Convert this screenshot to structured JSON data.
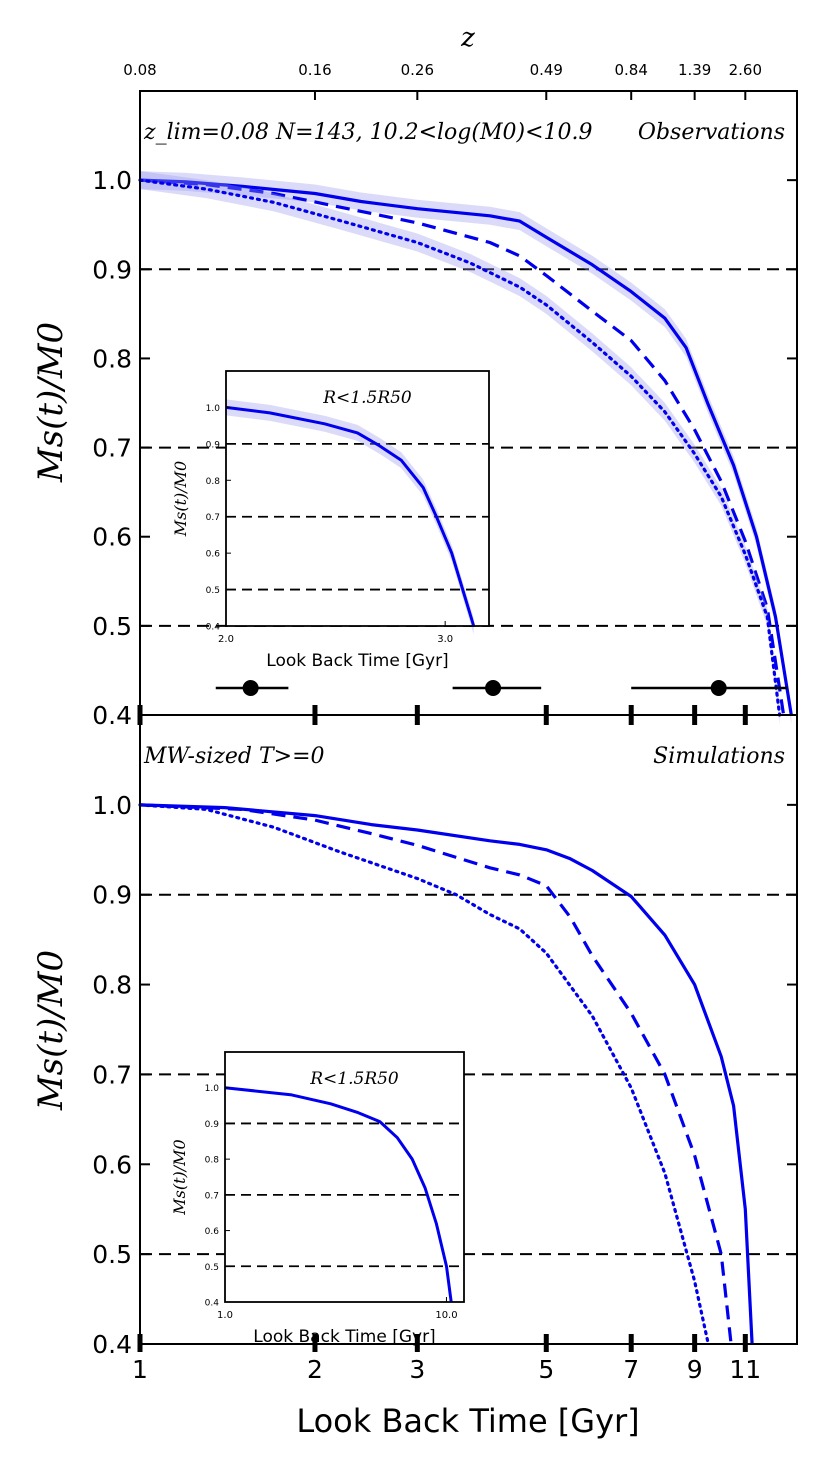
{
  "figure": {
    "top_axis_label": "z",
    "x_label": "Look Back Time [Gyr]",
    "y_label_text": "Ms(t)/M0"
  },
  "chart_data": [
    {
      "type": "line",
      "panel": "top",
      "annotation_left": "z_lim=0.08 N=143, 10.2<log(M0)<10.9",
      "annotation_right": "Observations",
      "xscale": "log",
      "xlim": [
        1,
        13.5
      ],
      "ylim": [
        0.4,
        1.1
      ],
      "yticks": [
        0.4,
        0.5,
        0.6,
        0.7,
        0.8,
        0.9,
        1.0
      ],
      "top_ticks": [
        {
          "z": "0.08",
          "t": 1.0
        },
        {
          "z": "0.16",
          "t": 2.0
        },
        {
          "z": "0.26",
          "t": 3.0
        },
        {
          "z": "0.49",
          "t": 5.0
        },
        {
          "z": "0.84",
          "t": 7.0
        },
        {
          "z": "1.39",
          "t": 9.0
        },
        {
          "z": "2.60",
          "t": 11.0
        }
      ],
      "hlines": [
        0.5,
        0.7,
        0.9
      ],
      "error_bars": [
        {
          "x": 1.55,
          "xerr": [
            1.35,
            1.8
          ]
        },
        {
          "x": 4.05,
          "xerr": [
            3.45,
            4.9
          ]
        },
        {
          "x": 9.9,
          "xerr": [
            7.0,
            13.0
          ]
        }
      ],
      "series": [
        {
          "style": "solid",
          "band": true,
          "points": [
            [
              1.0,
              1.0
            ],
            [
              1.2,
              0.998
            ],
            [
              1.5,
              0.993
            ],
            [
              2.0,
              0.985
            ],
            [
              2.4,
              0.976
            ],
            [
              3.0,
              0.968
            ],
            [
              4.0,
              0.96
            ],
            [
              4.5,
              0.954
            ],
            [
              5.0,
              0.936
            ],
            [
              6.0,
              0.905
            ],
            [
              7.0,
              0.875
            ],
            [
              8.0,
              0.845
            ],
            [
              8.7,
              0.812
            ],
            [
              9.5,
              0.748
            ],
            [
              10.5,
              0.68
            ],
            [
              11.5,
              0.6
            ],
            [
              12.4,
              0.51
            ],
            [
              13.2,
              0.4
            ]
          ]
        },
        {
          "style": "dashed",
          "band": false,
          "points": [
            [
              1.0,
              1.0
            ],
            [
              1.3,
              0.995
            ],
            [
              1.7,
              0.985
            ],
            [
              2.2,
              0.97
            ],
            [
              3.0,
              0.952
            ],
            [
              4.0,
              0.93
            ],
            [
              4.5,
              0.915
            ],
            [
              5.0,
              0.893
            ],
            [
              6.0,
              0.853
            ],
            [
              7.0,
              0.82
            ],
            [
              8.0,
              0.775
            ],
            [
              9.0,
              0.72
            ],
            [
              10.0,
              0.662
            ],
            [
              11.0,
              0.595
            ],
            [
              12.0,
              0.52
            ],
            [
              12.8,
              0.4
            ]
          ]
        },
        {
          "style": "dotted",
          "band": true,
          "points": [
            [
              1.0,
              1.0
            ],
            [
              1.3,
              0.99
            ],
            [
              1.7,
              0.975
            ],
            [
              2.2,
              0.955
            ],
            [
              3.0,
              0.93
            ],
            [
              3.7,
              0.907
            ],
            [
              4.5,
              0.88
            ],
            [
              5.0,
              0.86
            ],
            [
              6.0,
              0.818
            ],
            [
              7.0,
              0.78
            ],
            [
              8.0,
              0.74
            ],
            [
              9.0,
              0.693
            ],
            [
              10.0,
              0.645
            ],
            [
              11.0,
              0.58
            ],
            [
              12.0,
              0.51
            ],
            [
              12.6,
              0.4
            ]
          ]
        }
      ],
      "inset": {
        "annotation": "R<1.5R50",
        "x_label": "Look Back Time [Gyr]",
        "xlim": [
          2.0,
          3.2
        ],
        "ylim": [
          0.4,
          1.1
        ],
        "xticks": [
          "2.0",
          "3.0"
        ],
        "yticks": [
          "0.4",
          "0.5",
          "0.6",
          "0.7",
          "0.8",
          "0.9",
          "1.0"
        ],
        "hlines": [
          0.5,
          0.7,
          0.9
        ],
        "series": {
          "style": "solid",
          "band": true,
          "points": [
            [
              2.0,
              1.0
            ],
            [
              2.2,
              0.985
            ],
            [
              2.45,
              0.955
            ],
            [
              2.6,
              0.93
            ],
            [
              2.7,
              0.895
            ],
            [
              2.8,
              0.855
            ],
            [
              2.9,
              0.78
            ],
            [
              2.96,
              0.7
            ],
            [
              3.03,
              0.6
            ],
            [
              3.08,
              0.5
            ],
            [
              3.13,
              0.4
            ]
          ]
        }
      }
    },
    {
      "type": "line",
      "panel": "bottom",
      "annotation_left": "MW-sized T>=0",
      "annotation_right": "Simulations",
      "xscale": "log",
      "xlim": [
        1,
        13.5
      ],
      "ylim": [
        0.4,
        1.1
      ],
      "xticks": [
        "1",
        "2",
        "3",
        "5",
        "7",
        "9",
        "11"
      ],
      "xtick_values": [
        1,
        2,
        3,
        5,
        7,
        9,
        11
      ],
      "yticks": [
        0.4,
        0.5,
        0.6,
        0.7,
        0.8,
        0.9,
        1.0
      ],
      "hlines": [
        0.5,
        0.7,
        0.9
      ],
      "series": [
        {
          "style": "solid",
          "band": false,
          "points": [
            [
              1.0,
              1.0
            ],
            [
              1.4,
              0.997
            ],
            [
              2.0,
              0.988
            ],
            [
              2.5,
              0.978
            ],
            [
              3.0,
              0.972
            ],
            [
              4.0,
              0.96
            ],
            [
              4.5,
              0.956
            ],
            [
              5.0,
              0.95
            ],
            [
              5.5,
              0.94
            ],
            [
              6.0,
              0.927
            ],
            [
              7.0,
              0.898
            ],
            [
              8.0,
              0.855
            ],
            [
              9.0,
              0.8
            ],
            [
              10.0,
              0.72
            ],
            [
              10.5,
              0.665
            ],
            [
              11.0,
              0.55
            ],
            [
              11.3,
              0.4
            ]
          ]
        },
        {
          "style": "dashed",
          "band": false,
          "points": [
            [
              1.0,
              1.0
            ],
            [
              1.5,
              0.995
            ],
            [
              2.0,
              0.983
            ],
            [
              2.5,
              0.968
            ],
            [
              3.0,
              0.955
            ],
            [
              4.0,
              0.93
            ],
            [
              4.5,
              0.922
            ],
            [
              5.0,
              0.91
            ],
            [
              5.5,
              0.875
            ],
            [
              6.0,
              0.832
            ],
            [
              7.0,
              0.768
            ],
            [
              8.0,
              0.7
            ],
            [
              9.0,
              0.61
            ],
            [
              10.0,
              0.5
            ],
            [
              10.4,
              0.4
            ]
          ]
        },
        {
          "style": "dotted",
          "band": false,
          "points": [
            [
              1.0,
              1.0
            ],
            [
              1.3,
              0.995
            ],
            [
              1.7,
              0.975
            ],
            [
              2.2,
              0.948
            ],
            [
              3.0,
              0.918
            ],
            [
              3.5,
              0.9
            ],
            [
              4.0,
              0.878
            ],
            [
              4.5,
              0.862
            ],
            [
              5.0,
              0.835
            ],
            [
              6.0,
              0.765
            ],
            [
              7.0,
              0.685
            ],
            [
              8.0,
              0.59
            ],
            [
              9.0,
              0.47
            ],
            [
              9.5,
              0.4
            ]
          ]
        }
      ],
      "inset": {
        "annotation": "R<1.5R50",
        "x_label": "Look Back Time [Gyr]",
        "xscale": "log",
        "xlim": [
          1.0,
          12.0
        ],
        "ylim": [
          0.4,
          1.1
        ],
        "xticks": [
          "1.0",
          "10.0"
        ],
        "yticks": [
          "0.4",
          "0.5",
          "0.6",
          "0.7",
          "0.8",
          "0.9",
          "1.0"
        ],
        "hlines": [
          0.5,
          0.7,
          0.9
        ],
        "series": {
          "style": "solid",
          "band": false,
          "points": [
            [
              1.0,
              1.0
            ],
            [
              2.0,
              0.98
            ],
            [
              3.0,
              0.955
            ],
            [
              4.0,
              0.93
            ],
            [
              5.0,
              0.905
            ],
            [
              6.0,
              0.86
            ],
            [
              7.0,
              0.8
            ],
            [
              8.0,
              0.72
            ],
            [
              9.0,
              0.62
            ],
            [
              10.0,
              0.5
            ],
            [
              10.5,
              0.4
            ]
          ]
        }
      }
    }
  ],
  "colors": {
    "series": "#0000ee",
    "band": "#9999ee",
    "reference": "#000000"
  }
}
